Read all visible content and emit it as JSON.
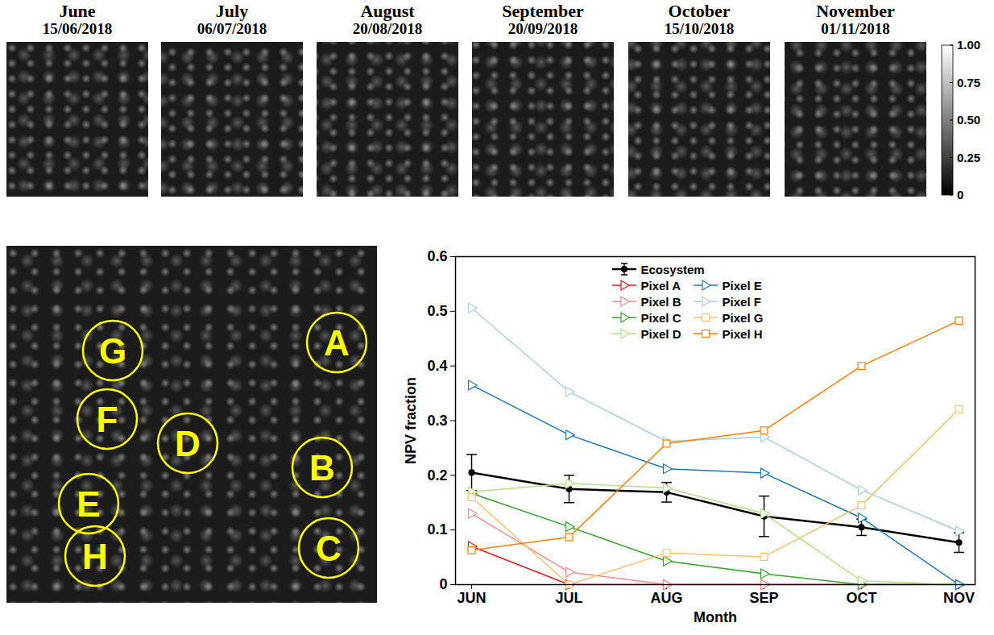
{
  "panels": [
    {
      "month": "June",
      "date": "15/06/2018"
    },
    {
      "month": "July",
      "date": "06/07/2018"
    },
    {
      "month": "August",
      "date": "20/08/2018"
    },
    {
      "month": "September",
      "date": "20/09/2018"
    },
    {
      "month": "October",
      "date": "15/10/2018"
    },
    {
      "month": "November",
      "date": "01/11/2018"
    }
  ],
  "colorbar": {
    "range": [
      0,
      1
    ],
    "ticks": [
      0,
      0.25,
      {
        "value": 0.5,
        "label": "0.50"
      },
      0.75,
      {
        "value": 1,
        "label": "1.00"
      }
    ]
  },
  "map_labels": [
    "G",
    "A",
    "F",
    "D",
    "B",
    "E",
    "C",
    "H"
  ],
  "chart_data": {
    "type": "line",
    "x_label": "Month",
    "y_label": "NPV fraction",
    "categories": [
      "JUN",
      "JUL",
      "AUG",
      "SEP",
      "OCT",
      "NOV"
    ],
    "ylim": [
      0,
      0.6
    ],
    "yticks": [
      0,
      0.1,
      0.2,
      0.3,
      0.4,
      0.5,
      0.6
    ],
    "legend": "top",
    "series": [
      {
        "name": "Ecosystem",
        "color": "#000000",
        "marker": "circle",
        "values": [
          0.205,
          0.175,
          0.169,
          0.125,
          0.105,
          0.077
        ],
        "error": [
          0.033,
          0.025,
          0.018,
          0.037,
          0.015,
          0.018
        ]
      },
      {
        "name": "Pixel A",
        "color": "#e31a1c",
        "marker": "triangle-right",
        "values": [
          0.07,
          0,
          0,
          0,
          0,
          0
        ]
      },
      {
        "name": "Pixel B",
        "color": "#f08c8c",
        "marker": "triangle-right",
        "values": [
          0.13,
          0.023,
          0,
          0,
          0,
          0
        ]
      },
      {
        "name": "Pixel C",
        "color": "#33a02c",
        "marker": "triangle-right",
        "values": [
          0.167,
          0.106,
          0.043,
          0.02,
          0,
          0
        ]
      },
      {
        "name": "Pixel D",
        "color": "#b2df8a",
        "marker": "triangle-right",
        "values": [
          0.17,
          0.185,
          0.177,
          0.13,
          0.007,
          0
        ]
      },
      {
        "name": "Pixel E",
        "color": "#1f78b4",
        "marker": "triangle-right",
        "values": [
          0.365,
          0.274,
          0.212,
          0.204,
          0.122,
          0
        ]
      },
      {
        "name": "Pixel F",
        "color": "#a6cee3",
        "marker": "triangle-right",
        "values": [
          0.506,
          0.353,
          0.262,
          0.27,
          0.173,
          0.098
        ]
      },
      {
        "name": "Pixel G",
        "color": "#fdbf6f",
        "marker": "square",
        "values": [
          0.16,
          0,
          0.058,
          0.051,
          0.145,
          0.321
        ]
      },
      {
        "name": "Pixel H",
        "color": "#ff7f00",
        "marker": "square",
        "values": [
          0.063,
          0.087,
          0.258,
          0.282,
          0.4,
          0.483
        ]
      }
    ]
  }
}
